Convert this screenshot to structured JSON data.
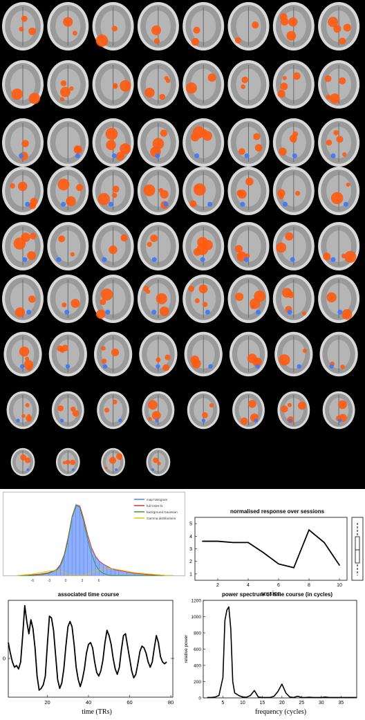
{
  "brain_montage": {
    "rows": [
      8,
      8,
      8,
      8,
      8,
      8,
      8,
      8,
      4
    ],
    "colors": {
      "background": "#000000",
      "positive": "#ff5a10",
      "negative": "#3a78ff",
      "tissue": "#9a9a9a"
    }
  },
  "histogram": {
    "legend": [
      {
        "label": "map histogram",
        "color": "#7aa0ff"
      },
      {
        "label": "full GGM fit",
        "color": "#e03030"
      },
      {
        "label": "background Gaussian",
        "color": "#2fa02f"
      },
      {
        "label": "Gamma distributions",
        "color": "#e8c000"
      }
    ],
    "ticks": [
      "-6",
      "-3",
      "0",
      "3",
      "6"
    ]
  },
  "chart_data": [
    {
      "type": "area",
      "id": "map-histogram",
      "x": [
        -8,
        -7,
        -6,
        -5,
        -4,
        -3,
        -2.5,
        -2,
        -1.5,
        -1,
        -0.5,
        0,
        0.5,
        1,
        1.5,
        2,
        2.5,
        3,
        3.5,
        4,
        4.5,
        5,
        6,
        7,
        8,
        9,
        10,
        11,
        12
      ],
      "series": [
        {
          "name": "map histogram",
          "values": [
            0,
            0,
            0.01,
            0.02,
            0.04,
            0.09,
            0.16,
            0.3,
            0.55,
            0.83,
            1.0,
            0.96,
            0.8,
            0.58,
            0.4,
            0.27,
            0.2,
            0.16,
            0.13,
            0.1,
            0.08,
            0.07,
            0.05,
            0.03,
            0.02,
            0.01,
            0.01,
            0,
            0
          ]
        },
        {
          "name": "full GGM fit",
          "values": [
            0,
            0,
            0.01,
            0.02,
            0.04,
            0.08,
            0.15,
            0.29,
            0.53,
            0.82,
            0.98,
            0.97,
            0.79,
            0.57,
            0.39,
            0.27,
            0.2,
            0.16,
            0.13,
            0.1,
            0.08,
            0.07,
            0.05,
            0.03,
            0.02,
            0.01,
            0.01,
            0,
            0
          ]
        },
        {
          "name": "background Gaussian",
          "values": [
            0,
            0,
            0,
            0.01,
            0.03,
            0.07,
            0.13,
            0.27,
            0.5,
            0.8,
            0.97,
            0.95,
            0.75,
            0.5,
            0.3,
            0.15,
            0.07,
            0.03,
            0.01,
            0,
            0,
            0,
            0,
            0,
            0,
            0,
            0,
            0,
            0
          ]
        },
        {
          "name": "Gamma distributions",
          "values": [
            0,
            0.01,
            0.02,
            0.04,
            0.06,
            0.07,
            0.06,
            0.04,
            0.02,
            0,
            0,
            0,
            0,
            0.02,
            0.04,
            0.06,
            0.08,
            0.09,
            0.1,
            0.1,
            0.09,
            0.08,
            0.06,
            0.04,
            0.03,
            0.02,
            0.01,
            0,
            0
          ]
        }
      ],
      "xlim": [
        -9,
        13
      ],
      "ylim": [
        0,
        1.05
      ]
    },
    {
      "type": "line",
      "id": "session-response",
      "title": "normalised response over sessions",
      "xlabel": "session",
      "x": [
        1,
        2,
        3,
        4,
        5,
        6,
        7,
        8,
        9,
        10
      ],
      "values": [
        3.6,
        3.6,
        3.5,
        3.5,
        2.7,
        1.8,
        1.5,
        4.5,
        3.5,
        1.7
      ],
      "xlim": [
        0.5,
        10.5
      ],
      "ylim": [
        0.5,
        5.5
      ],
      "xticks": [
        "2",
        "4",
        "6",
        "8",
        "10"
      ],
      "yticks": [
        "1",
        "2",
        "3",
        "4",
        "5"
      ]
    },
    {
      "type": "line",
      "id": "time-course",
      "title": "associated time course",
      "xlabel": "time (TRs)",
      "x": [
        1,
        2,
        3,
        4,
        5,
        6,
        7,
        8,
        9,
        10,
        11,
        12,
        13,
        14,
        15,
        16,
        17,
        18,
        19,
        20,
        21,
        22,
        23,
        24,
        25,
        26,
        27,
        28,
        29,
        30,
        31,
        32,
        33,
        34,
        35,
        36,
        37,
        38,
        39,
        40,
        41,
        42,
        43,
        44,
        45,
        46,
        47,
        48,
        49,
        50,
        51,
        52,
        53,
        54,
        55,
        56,
        57,
        58,
        59,
        60,
        61,
        62,
        63,
        64,
        65,
        66,
        67,
        68,
        69,
        70,
        71,
        72,
        73,
        74,
        75,
        76,
        77,
        78
      ],
      "values": [
        0.9,
        0.3,
        -0.2,
        -0.5,
        -0.4,
        -0.6,
        -0.2,
        1.3,
        3.0,
        2.1,
        1.4,
        2.2,
        1.7,
        0.6,
        -1.0,
        -1.8,
        -1.7,
        -1.5,
        -1.0,
        0.8,
        2.4,
        2.3,
        1.6,
        0.2,
        -1.2,
        -1.7,
        -1.4,
        -0.6,
        0.7,
        1.8,
        2.1,
        1.8,
        0.8,
        -0.5,
        -1.2,
        -1.6,
        -1.2,
        -0.6,
        0.3,
        0.8,
        0.9,
        0.6,
        -0.2,
        -0.8,
        -1.0,
        -0.7,
        -0.1,
        0.9,
        1.6,
        1.3,
        0.8,
        0.0,
        -0.6,
        -0.9,
        -0.5,
        0.5,
        1.3,
        1.4,
        0.7,
        0.0,
        -0.7,
        -1.1,
        -0.9,
        -0.3,
        0.4,
        0.7,
        0.6,
        0.3,
        -0.2,
        -0.5,
        -0.2,
        0.6,
        1.3,
        0.9,
        0.1,
        -0.2,
        -0.3,
        -0.2
      ],
      "xlim": [
        1,
        81
      ],
      "ylim": [
        -2.2,
        3.3
      ],
      "xticks": [
        "20",
        "40",
        "60",
        "80"
      ],
      "yticks": [
        "0"
      ]
    },
    {
      "type": "line",
      "id": "power-spectrum",
      "title": "power spectrum of time course (in cycles)",
      "xlabel": "frequency (cycles)",
      "ylabel": "relative power",
      "x": [
        1,
        2,
        3,
        4,
        5,
        5.5,
        6,
        6.5,
        7,
        7.5,
        8,
        9,
        10,
        11,
        12,
        13,
        14,
        15,
        16,
        17,
        18,
        19,
        20,
        21,
        22,
        23,
        24,
        25,
        26,
        27,
        28,
        29,
        30,
        31,
        32,
        33,
        34,
        35,
        36,
        37,
        38,
        39
      ],
      "values": [
        5,
        5,
        10,
        30,
        250,
        950,
        1080,
        1120,
        850,
        200,
        60,
        30,
        10,
        8,
        30,
        90,
        10,
        5,
        5,
        5,
        20,
        80,
        170,
        60,
        10,
        5,
        20,
        5,
        5,
        8,
        5,
        5,
        5,
        10,
        5,
        5,
        5,
        5,
        5,
        5,
        5,
        5
      ],
      "xlim": [
        0,
        39
      ],
      "ylim": [
        0,
        1200
      ],
      "xticks": [
        "5",
        "10",
        "15",
        "20",
        "25",
        "30",
        "35"
      ],
      "yticks": [
        "0",
        "200",
        "400",
        "600",
        "800",
        "1000",
        "1200"
      ]
    }
  ]
}
